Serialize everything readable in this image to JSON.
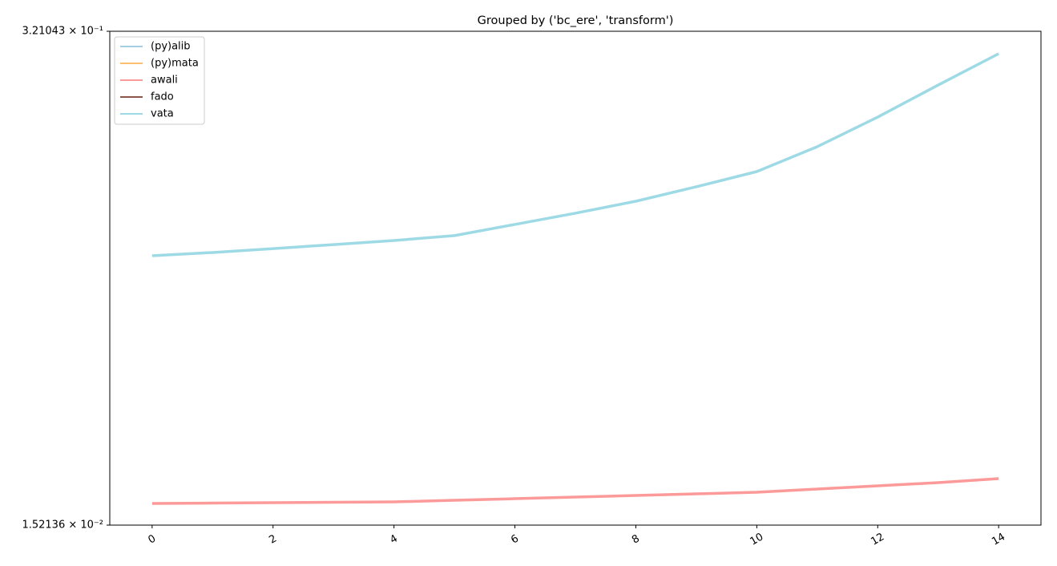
{
  "chart_data": {
    "type": "line",
    "title": "Grouped by ('bc_ere', 'transform')",
    "x": [
      0,
      1,
      2,
      3,
      4,
      5,
      6,
      7,
      8,
      9,
      10,
      11,
      12,
      13,
      14
    ],
    "series": [
      {
        "name": "(py)alib",
        "color": "#a6cee3",
        "values": [
          null,
          null,
          null,
          null,
          null,
          null,
          null,
          null,
          null,
          null,
          null,
          null,
          null,
          null,
          null
        ]
      },
      {
        "name": "(py)mata",
        "color": "#fdbf6f",
        "values": [
          null,
          null,
          null,
          null,
          null,
          null,
          null,
          null,
          null,
          null,
          null,
          null,
          null,
          null,
          null
        ]
      },
      {
        "name": "awali",
        "color": "#fb9a99",
        "values": [
          0.01739,
          0.01743,
          0.01748,
          0.01752,
          0.01756,
          0.01774,
          0.01791,
          0.01809,
          0.01827,
          0.01845,
          0.01864,
          0.01901,
          0.01939,
          0.01978,
          0.02027
        ]
      },
      {
        "name": "fado",
        "color": "#8c564b",
        "values": [
          null,
          null,
          null,
          null,
          null,
          null,
          null,
          null,
          null,
          null,
          null,
          null,
          null,
          null,
          null
        ]
      },
      {
        "name": "vata",
        "color": "#9edae5",
        "values": [
          0.0803,
          0.0819,
          0.0839,
          0.086,
          0.0882,
          0.0909,
          0.0974,
          0.1044,
          0.1124,
          0.1229,
          0.135,
          0.1574,
          0.189,
          0.2304,
          0.2795
        ]
      }
    ],
    "xlim": [
      -0.7,
      14.7
    ],
    "xticks": [
      0,
      2,
      4,
      6,
      8,
      10,
      12,
      14
    ],
    "ylim": [
      0.0152136,
      0.321043
    ],
    "ylog": true,
    "yticks": [
      {
        "value": 0.0152136,
        "label": "1.52136 × 10⁻²"
      },
      {
        "value": 0.321043,
        "label": "3.21043 × 10⁻¹"
      }
    ],
    "legend": "upper left"
  }
}
